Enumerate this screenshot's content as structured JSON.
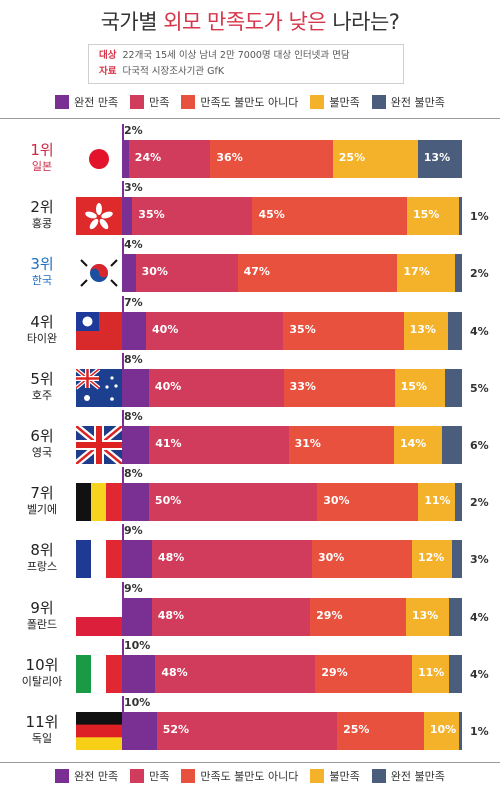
{
  "title": {
    "prefix": "국가별 ",
    "highlight": "외모 만족도가 낮은",
    "suffix": " 나라는?"
  },
  "source": {
    "target_key": "대상",
    "target_text": "22개국 15세 이상 남녀 2만 7000명 대상 인터넷과 면담",
    "data_key": "자료",
    "data_text": "다국적 시장조사기관 GfK"
  },
  "colors": {
    "very_satisfied": "#7a2f92",
    "satisfied": "#d23c5c",
    "neutral": "#e9513f",
    "dissatisfied": "#f4b22b",
    "very_dissatisfied": "#4b5d7c"
  },
  "legend": [
    "완전 만족",
    "만족",
    "만족도 불만도 아니다",
    "불만족",
    "완전 불만족"
  ],
  "chart_data": {
    "type": "bar",
    "stacked": true,
    "orientation": "horizontal",
    "categories": [
      "일본",
      "홍콩",
      "한국",
      "타이완",
      "호주",
      "영국",
      "벨기에",
      "프랑스",
      "폴란드",
      "이탈리아",
      "독일"
    ],
    "ranks": [
      "1위",
      "2위",
      "3위",
      "4위",
      "5위",
      "6위",
      "7위",
      "8위",
      "9위",
      "10위",
      "11위"
    ],
    "series": [
      {
        "name": "완전 만족",
        "values": [
          2,
          3,
          4,
          7,
          8,
          8,
          8,
          9,
          9,
          10,
          10
        ]
      },
      {
        "name": "만족",
        "values": [
          24,
          35,
          30,
          40,
          40,
          41,
          50,
          48,
          48,
          48,
          52
        ]
      },
      {
        "name": "만족도 불만도 아니다",
        "values": [
          36,
          45,
          47,
          35,
          33,
          31,
          30,
          30,
          29,
          29,
          25
        ]
      },
      {
        "name": "불만족",
        "values": [
          25,
          15,
          17,
          13,
          15,
          14,
          11,
          12,
          13,
          11,
          10
        ]
      },
      {
        "name": "완전 불만족",
        "values": [
          13,
          1,
          2,
          4,
          5,
          6,
          2,
          3,
          4,
          4,
          1
        ]
      }
    ],
    "flags": [
      "japan",
      "hong-kong",
      "south-korea",
      "taiwan",
      "australia",
      "uk",
      "belgium",
      "france",
      "poland",
      "italy",
      "germany"
    ]
  }
}
